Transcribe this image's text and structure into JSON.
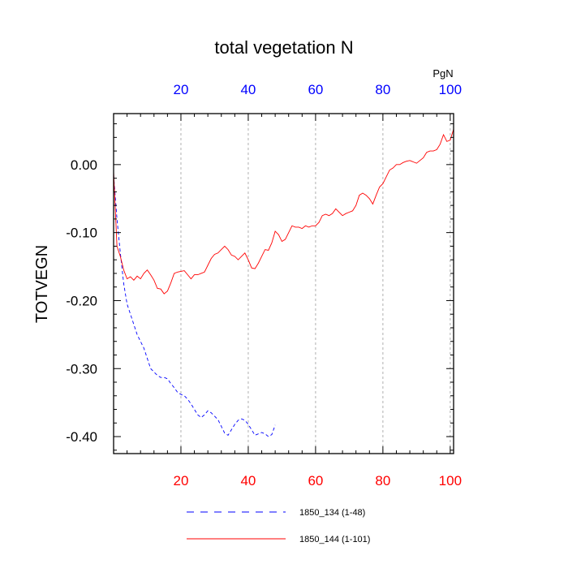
{
  "chart_data": {
    "type": "line",
    "title": "total vegetation N",
    "ylabel": "TOTVEGN",
    "xlabel": "",
    "top_axis_units": "PgN",
    "xlim": [
      0,
      101
    ],
    "ylim": [
      -0.425,
      0.075
    ],
    "x_ticks_bottom": [
      20,
      40,
      60,
      80,
      100
    ],
    "x_ticks_top": [
      20,
      40,
      60,
      80,
      100
    ],
    "y_ticks": [
      0.0,
      -0.1,
      -0.2,
      -0.3,
      -0.4
    ],
    "y_tick_labels": [
      "0.00",
      "-0.10",
      "-0.20",
      "-0.30",
      "-0.40"
    ],
    "grid": "vertical dashed at major x ticks",
    "legend_placement": "bottom",
    "colors": {
      "bottom_axis": "#ff0000",
      "top_axis": "#0000ff",
      "grid": "#b0b0b0"
    },
    "series": [
      {
        "name": "1850_134 (1-48)",
        "color": "#0000ff",
        "dash": "dashed",
        "x": [
          0,
          1,
          2,
          3,
          4,
          5,
          6,
          7,
          8,
          9,
          10,
          11,
          12,
          13,
          14,
          15,
          16,
          17,
          18,
          19,
          20,
          21,
          22,
          23,
          24,
          25,
          26,
          27,
          28,
          29,
          30,
          31,
          32,
          33,
          34,
          35,
          36,
          37,
          38,
          39,
          40,
          41,
          42,
          43,
          44,
          45,
          46,
          47,
          48
        ],
        "values": [
          -0.015,
          -0.08,
          -0.13,
          -0.175,
          -0.205,
          -0.22,
          -0.235,
          -0.25,
          -0.26,
          -0.27,
          -0.285,
          -0.3,
          -0.305,
          -0.31,
          -0.313,
          -0.313,
          -0.315,
          -0.322,
          -0.328,
          -0.335,
          -0.338,
          -0.34,
          -0.345,
          -0.352,
          -0.36,
          -0.368,
          -0.372,
          -0.368,
          -0.362,
          -0.365,
          -0.37,
          -0.375,
          -0.385,
          -0.395,
          -0.398,
          -0.39,
          -0.382,
          -0.376,
          -0.374,
          -0.376,
          -0.382,
          -0.39,
          -0.398,
          -0.396,
          -0.394,
          -0.396,
          -0.4,
          -0.397,
          -0.383
        ]
      },
      {
        "name": "1850_144 (1-101)",
        "color": "#ff0000",
        "dash": "solid",
        "x": [
          0,
          1,
          2,
          3,
          4,
          5,
          6,
          7,
          8,
          9,
          10,
          11,
          12,
          13,
          14,
          15,
          16,
          17,
          18,
          19,
          20,
          21,
          22,
          23,
          24,
          25,
          26,
          27,
          28,
          29,
          30,
          31,
          32,
          33,
          34,
          35,
          36,
          37,
          38,
          39,
          40,
          41,
          42,
          43,
          44,
          45,
          46,
          47,
          48,
          49,
          50,
          51,
          52,
          53,
          54,
          55,
          56,
          57,
          58,
          59,
          60,
          61,
          62,
          63,
          64,
          65,
          66,
          67,
          68,
          69,
          70,
          71,
          72,
          73,
          74,
          75,
          76,
          77,
          78,
          79,
          80,
          81,
          82,
          83,
          84,
          85,
          86,
          87,
          88,
          89,
          90,
          91,
          92,
          93,
          94,
          95,
          96,
          97,
          98,
          99,
          100,
          101
        ],
        "values": [
          -0.01,
          -0.12,
          -0.135,
          -0.155,
          -0.168,
          -0.165,
          -0.17,
          -0.164,
          -0.168,
          -0.16,
          -0.155,
          -0.162,
          -0.17,
          -0.182,
          -0.183,
          -0.19,
          -0.186,
          -0.174,
          -0.16,
          -0.158,
          -0.157,
          -0.156,
          -0.162,
          -0.168,
          -0.162,
          -0.162,
          -0.16,
          -0.158,
          -0.148,
          -0.138,
          -0.132,
          -0.13,
          -0.125,
          -0.12,
          -0.125,
          -0.133,
          -0.135,
          -0.14,
          -0.135,
          -0.13,
          -0.14,
          -0.152,
          -0.153,
          -0.145,
          -0.135,
          -0.125,
          -0.126,
          -0.115,
          -0.098,
          -0.103,
          -0.113,
          -0.11,
          -0.1,
          -0.09,
          -0.092,
          -0.092,
          -0.094,
          -0.09,
          -0.092,
          -0.09,
          -0.09,
          -0.085,
          -0.075,
          -0.073,
          -0.075,
          -0.072,
          -0.065,
          -0.07,
          -0.075,
          -0.072,
          -0.07,
          -0.068,
          -0.06,
          -0.045,
          -0.042,
          -0.045,
          -0.05,
          -0.058,
          -0.045,
          -0.033,
          -0.028,
          -0.018,
          -0.008,
          -0.005,
          0.0,
          0.0,
          0.003,
          0.005,
          0.006,
          0.004,
          0.002,
          0.006,
          0.01,
          0.018,
          0.02,
          0.02,
          0.022,
          0.03,
          0.044,
          0.034,
          0.036,
          0.052
        ]
      }
    ]
  }
}
